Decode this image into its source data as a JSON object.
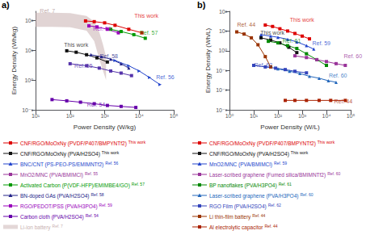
{
  "chart_data": [
    {
      "type": "line",
      "title": "a)",
      "x_label": "Power Density (W/kg)",
      "y_label": "Energy Density (Wh/kg)",
      "log": true,
      "grid": false,
      "xlim": [
        10,
        100000
      ],
      "ylim": [
        0.1,
        200
      ],
      "xticks": [
        {
          "value": 10,
          "label": "10¹"
        },
        {
          "value": 100,
          "label": "10²"
        },
        {
          "value": 1000,
          "label": "10³"
        },
        {
          "value": 10000,
          "label": "10⁴"
        },
        {
          "value": 100000,
          "label": "10⁵"
        }
      ],
      "yticks": [
        {
          "value": 0.1,
          "label": "10⁻¹"
        },
        {
          "value": 1,
          "label": "10⁰"
        },
        {
          "value": 10,
          "label": "10¹"
        },
        {
          "value": 100,
          "label": "10²"
        }
      ],
      "series": [
        {
          "type": "band",
          "color": "#c8b0b0",
          "x": [
            10,
            30,
            100,
            300,
            500,
            700,
            900,
            1100
          ],
          "low": [
            60,
            60,
            58,
            45,
            20,
            5,
            2,
            1
          ],
          "high": [
            180,
            180,
            175,
            140,
            90,
            40,
            15,
            6
          ]
        },
        {
          "type": "line",
          "color": "#dd0000",
          "marker": "square",
          "x": [
            280,
            500,
            1000,
            2000,
            5000,
            12000
          ],
          "values": [
            95,
            90,
            82,
            68,
            50,
            38
          ]
        },
        {
          "type": "line",
          "color": "#9900bb",
          "marker": "square",
          "x": [
            350,
            600,
            1200,
            2500
          ],
          "values": [
            65,
            60,
            50,
            38
          ]
        },
        {
          "type": "line",
          "color": "#009900",
          "marker": "square",
          "x": [
            1500,
            3000,
            7000,
            15000
          ],
          "values": [
            50,
            42,
            33,
            25
          ]
        },
        {
          "type": "line",
          "color": "#111111",
          "marker": "square",
          "x": [
            80,
            150,
            300,
            600,
            1200
          ],
          "values": [
            9.5,
            8.5,
            7.0,
            5.5,
            4.0
          ]
        },
        {
          "type": "line",
          "color": "#222288",
          "marker": "triangle-up",
          "x": [
            400,
            800,
            1500,
            3000,
            5000
          ],
          "values": [
            7.0,
            6.0,
            5.0,
            3.5,
            2.5
          ]
        },
        {
          "type": "line",
          "color": "#2244cc",
          "marker": "triangle-right",
          "x": [
            2000,
            5000,
            10000,
            20000,
            40000
          ],
          "values": [
            4.5,
            3.0,
            2.0,
            1.2,
            0.7
          ]
        },
        {
          "type": "line",
          "color": "#5533aa",
          "marker": "square",
          "x": [
            100,
            300,
            700,
            1500,
            3000,
            6000
          ],
          "values": [
            3.5,
            3.0,
            2.5,
            2.0,
            1.7,
            1.4
          ]
        },
        {
          "type": "line",
          "color": "#6600aa",
          "marker": "square",
          "x": [
            30,
            80,
            200,
            500,
            1200,
            3000,
            8000
          ],
          "values": [
            0.22,
            0.2,
            0.18,
            0.16,
            0.14,
            0.13,
            0.12
          ]
        }
      ],
      "annotations": [
        {
          "text": "Ref. 7",
          "x": 13,
          "y": 160,
          "color": "#b09090"
        },
        {
          "text": "This work",
          "x": 7000,
          "y": 108,
          "color": "#dd0000"
        },
        {
          "text": "Ref. 59",
          "x": 450,
          "y": 42,
          "color": "#9900bb"
        },
        {
          "text": "Ref. 57",
          "x": 10000,
          "y": 30,
          "color": "#009900"
        },
        {
          "text": "This work",
          "x": 65,
          "y": 12,
          "color": "#111111"
        },
        {
          "text": "Ref. 58",
          "x": 700,
          "y": 5.0,
          "color": "#222288"
        },
        {
          "text": "Ref. 56",
          "x": 30000,
          "y": 1.0,
          "color": "#2244cc"
        },
        {
          "text": "Ref. 55",
          "x": 130,
          "y": 2.3,
          "color": "#5533aa"
        },
        {
          "text": "Ref. 54",
          "x": 300,
          "y": 0.115,
          "color": "#6600aa"
        }
      ],
      "legend_entries": [
        {
          "label": "CNF/RGO/MoOxNy (PVDF/P407/BMPYNTf2)",
          "sup": "This work",
          "color": "#dd0000",
          "marker": "square"
        },
        {
          "label": "CNF/RGO/MoOxNy (PVA/H2SO4)",
          "sup": "This work",
          "color": "#111111",
          "marker": "square"
        },
        {
          "label": "BNC/CNT (PS-PEO-PS/EMIMNTf2)",
          "sup": "Ref. 56",
          "color": "#2244cc",
          "marker": "triangle-up"
        },
        {
          "label": "MnO2/MNC (PVA/BMIMCl)",
          "sup": "Ref. 55",
          "color": "#993399",
          "marker": "square"
        },
        {
          "label": "Activated Carbon (P(VDF-HFP)/EMIMBE4/GO)",
          "sup": "Ref. 57",
          "color": "#009900",
          "marker": "square"
        },
        {
          "label": "BN-doped GAs (PVA/H2SO4)",
          "sup": "Ref. 58",
          "color": "#222288",
          "marker": "triangle-up"
        },
        {
          "label": "RGO/PEDOT/PSS (PVA/H3PO4)",
          "sup": "Ref. 59",
          "color": "#9900bb",
          "marker": "square"
        },
        {
          "label": "Carbon cloth (PVA/H2SO4)",
          "sup": "Ref. 54",
          "color": "#6600aa",
          "marker": "square"
        },
        {
          "label": "Li-ion battery",
          "sup": "Ref. 7",
          "color": "#c8b0b0",
          "marker": null
        }
      ]
    },
    {
      "type": "line",
      "title": "b)",
      "x_label": "Power Density (W/L)",
      "y_label": "Energy Density (Wh/L)",
      "log": true,
      "grid": false,
      "xlim": [
        1,
        100000
      ],
      "ylim": [
        0.001,
        100
      ],
      "xticks": [
        {
          "value": 1,
          "label": "10⁰"
        },
        {
          "value": 10,
          "label": "10¹"
        },
        {
          "value": 100,
          "label": "10²"
        },
        {
          "value": 1000,
          "label": "10³"
        },
        {
          "value": 10000,
          "label": "10⁴"
        },
        {
          "value": 100000,
          "label": "10⁵"
        }
      ],
      "yticks": [
        {
          "value": 0.001,
          "label": "10⁻³"
        },
        {
          "value": 0.01,
          "label": "10⁻²"
        },
        {
          "value": 0.1,
          "label": "10⁻¹"
        },
        {
          "value": 1,
          "label": "10⁰"
        },
        {
          "value": 10,
          "label": "10¹"
        },
        {
          "value": 100,
          "label": "10²"
        }
      ],
      "series": [
        {
          "type": "line",
          "color": "#dd0000",
          "marker": "square",
          "x": [
            30,
            60,
            120,
            250,
            500,
            1000,
            2000
          ],
          "values": [
            20,
            17,
            13,
            10,
            7.5,
            5.5,
            4.0
          ]
        },
        {
          "type": "line",
          "color": "#993300",
          "marker": "square",
          "x": [
            2,
            4,
            8,
            15,
            30,
            50
          ],
          "values": [
            9.0,
            7.0,
            4.5,
            2.0,
            0.5,
            0.15
          ]
        },
        {
          "type": "line",
          "color": "#2244cc",
          "marker": "triangle-up",
          "x": [
            20,
            50,
            100,
            250,
            600,
            1500,
            3000
          ],
          "values": [
            6.5,
            5.5,
            4.8,
            3.8,
            2.8,
            1.8,
            1.2
          ]
        },
        {
          "type": "line",
          "color": "#111111",
          "marker": "square",
          "x": [
            20,
            50,
            120,
            280,
            600
          ],
          "values": [
            4.5,
            3.5,
            2.5,
            1.5,
            0.8
          ]
        },
        {
          "type": "line",
          "color": "#008800",
          "marker": "square",
          "x": [
            40,
            100,
            250,
            600,
            1500,
            4000,
            10000
          ],
          "values": [
            3.0,
            2.5,
            1.8,
            1.3,
            0.7,
            0.35,
            0.18
          ]
        },
        {
          "type": "line",
          "color": "#993399",
          "marker": "square",
          "x": [
            500,
            1500,
            4000,
            10000,
            25000,
            60000
          ],
          "values": [
            0.55,
            0.45,
            0.35,
            0.28,
            0.22,
            0.18
          ]
        },
        {
          "type": "line",
          "color": "#3344bb",
          "marker": "square",
          "x": [
            10,
            30,
            80,
            200,
            500,
            1500
          ],
          "values": [
            0.18,
            0.15,
            0.13,
            0.11,
            0.09,
            0.075
          ]
        },
        {
          "type": "line",
          "color": "#2266bb",
          "marker": "triangle-up",
          "x": [
            100,
            300,
            800,
            2000,
            5000,
            12000,
            25000
          ],
          "values": [
            0.12,
            0.09,
            0.07,
            0.05,
            0.04,
            0.03,
            0.025
          ]
        },
        {
          "type": "line",
          "color": "#aa2200",
          "marker": "square",
          "x": [
            200,
            500,
            1500,
            5000,
            15000,
            60000
          ],
          "values": [
            0.003,
            0.003,
            0.003,
            0.003,
            0.003,
            0.003
          ]
        }
      ],
      "annotations": [
        {
          "text": "This work",
          "x": 300,
          "y": 26,
          "color": "#dd0000"
        },
        {
          "text": "Ref. 44",
          "x": 2.0,
          "y": 14,
          "color": "#993300"
        },
        {
          "text": "Ref. 59",
          "x": 2500,
          "y": 1.6,
          "color": "#2244cc"
        },
        {
          "text": "This work",
          "x": 18,
          "y": 5.5,
          "color": "#111111"
        },
        {
          "text": "Ref. 61",
          "x": 150,
          "y": 2.2,
          "color": "#008800"
        },
        {
          "text": "Ref. 60",
          "x": 50000,
          "y": 0.35,
          "color": "#993399"
        },
        {
          "text": "Ref. 62",
          "x": 10,
          "y": 0.13,
          "color": "#3344bb"
        },
        {
          "text": "Ref. 60",
          "x": 12000,
          "y": 0.038,
          "color": "#2266bb"
        },
        {
          "text": "Ref. 44",
          "x": 20000,
          "y": 0.0018,
          "color": "#aa2200"
        }
      ],
      "legend_entries": [
        {
          "label": "CNF/RGO/MoOxNy (PVDF/P407/BMPYNTf2)",
          "sup": "This work",
          "color": "#dd0000",
          "marker": "square"
        },
        {
          "label": "CNF/RGO/MoOxNy (PVA/H2SO4)",
          "sup": "This work",
          "color": "#111111",
          "marker": "square"
        },
        {
          "label": "MnO2/MNC (PVA/BMIMCl)",
          "sup": "Ref. 59",
          "color": "#2244cc",
          "marker": "triangle-up"
        },
        {
          "label": "Laser-scribed graphene (Fumed silica/BMIMNTf2)",
          "sup": "Ref. 60",
          "color": "#993399",
          "marker": "square"
        },
        {
          "label": "BP nanoflakes (PVA/H3PO4)",
          "sup": "Ref. 61",
          "color": "#008800",
          "marker": "square"
        },
        {
          "label": "Laser-scribed graphene (PVA/H3PO4)",
          "sup": "Ref. 60",
          "color": "#2266bb",
          "marker": "triangle-up"
        },
        {
          "label": "RGO Film (PVA/H2SO4)",
          "sup": "Ref. 62",
          "color": "#3344bb",
          "marker": "square"
        },
        {
          "label": "Li thin-film battery",
          "sup": "Ref. 44",
          "color": "#993300",
          "marker": "square"
        },
        {
          "label": "Al electrolytic capacitor",
          "sup": "Ref. 44",
          "color": "#aa2200",
          "marker": "square"
        }
      ]
    }
  ]
}
